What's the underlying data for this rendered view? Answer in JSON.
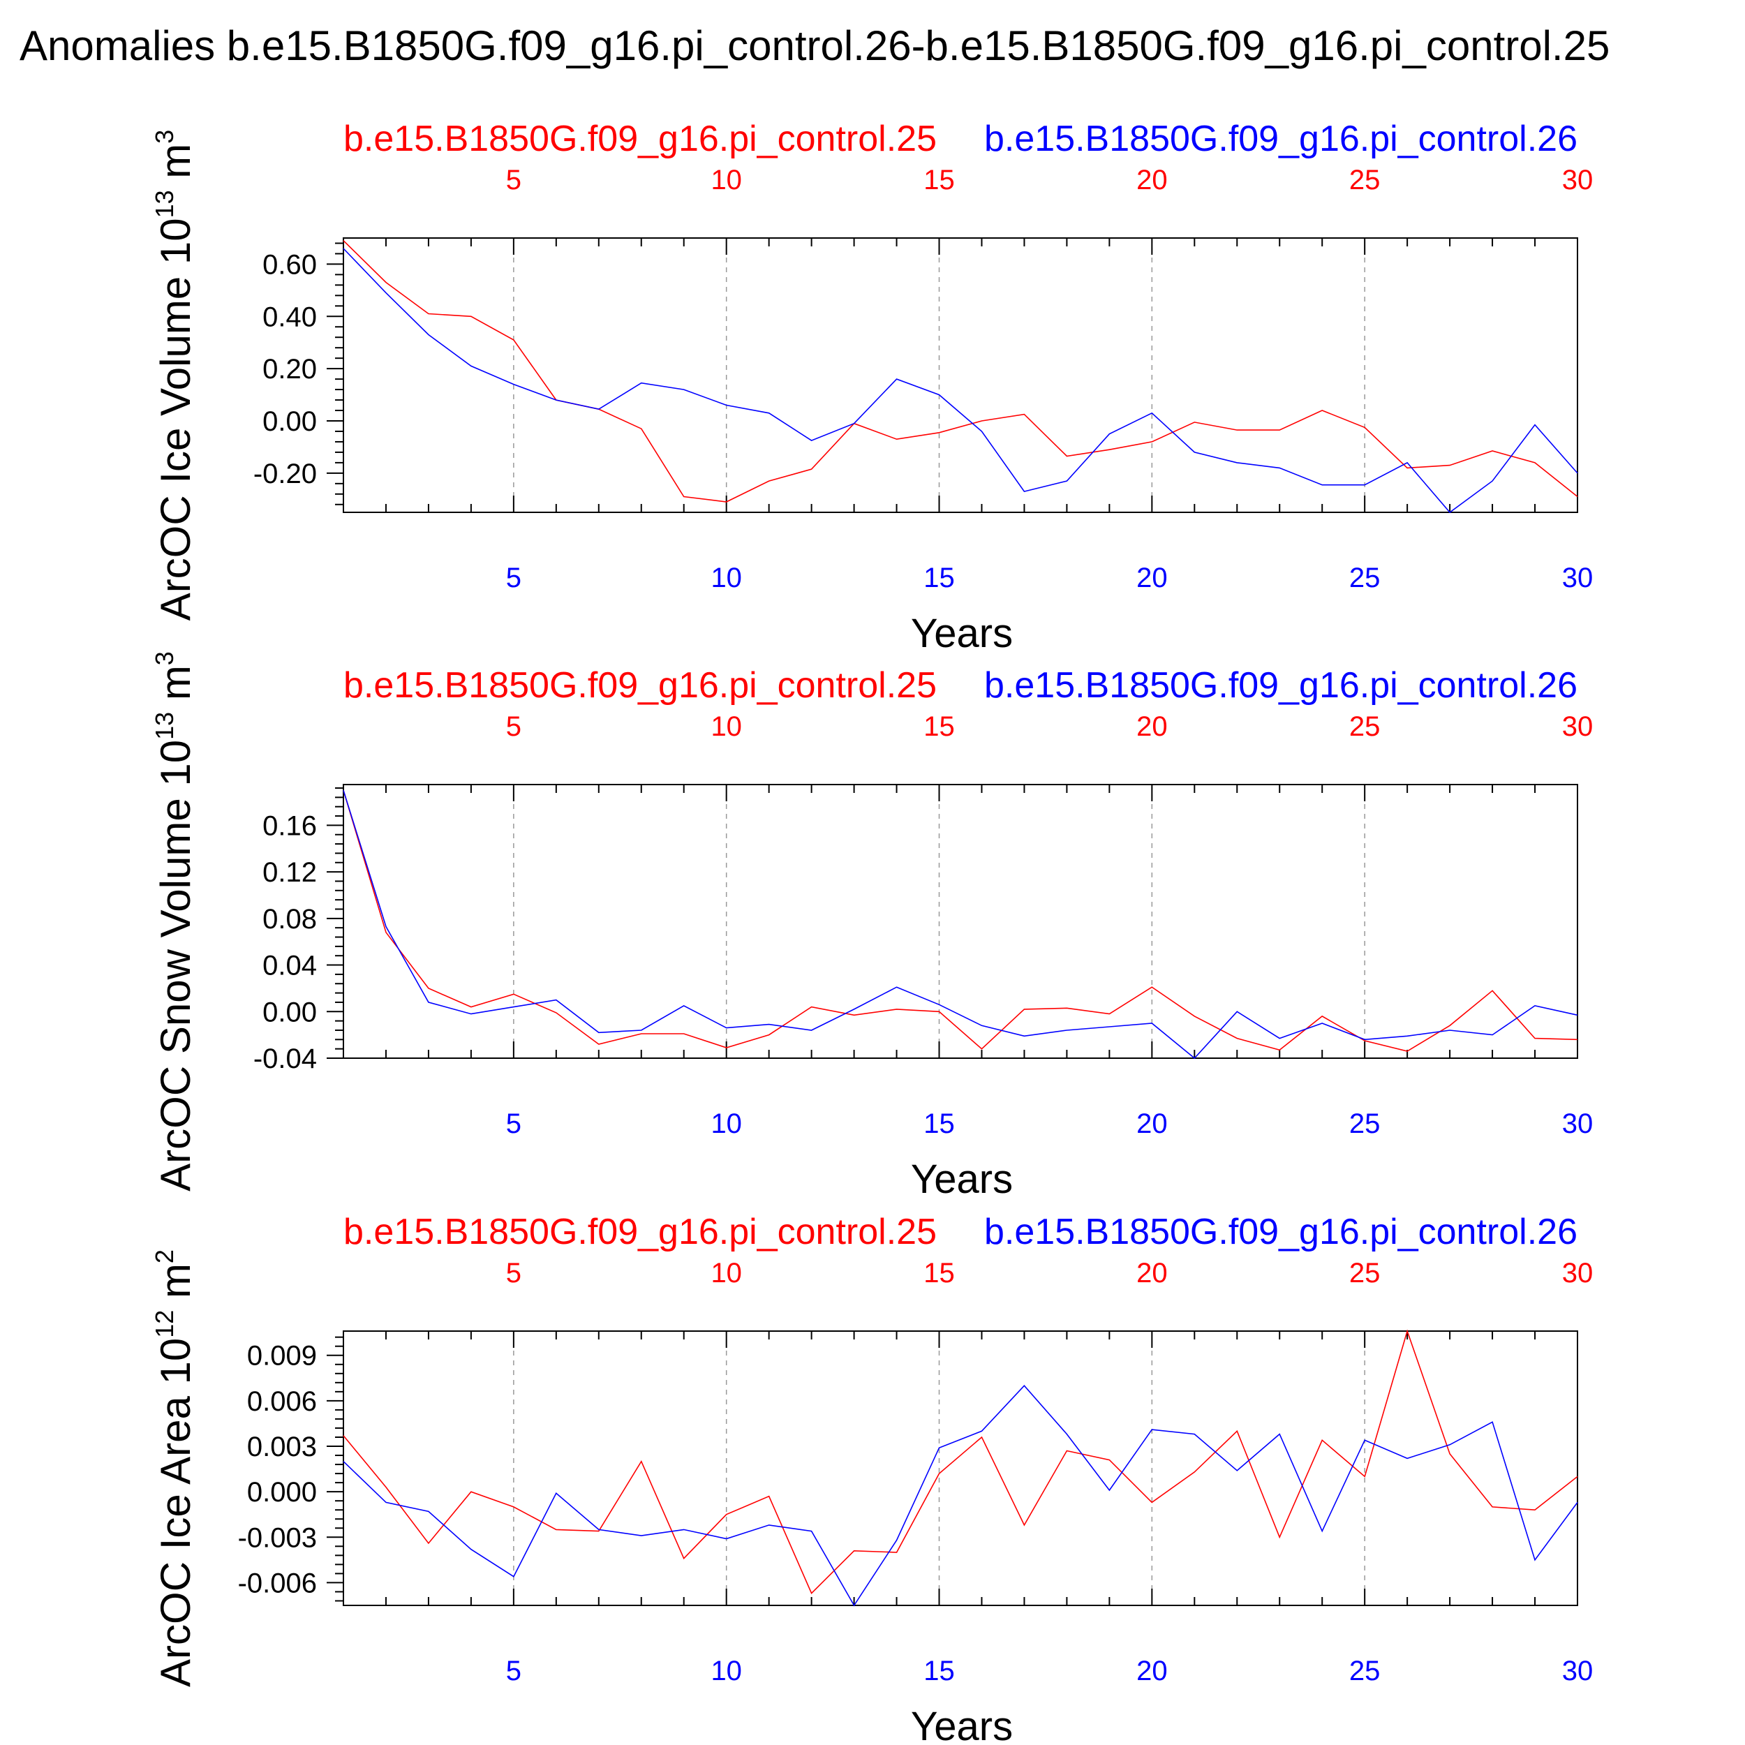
{
  "figure": {
    "title": "Anomalies b.e15.B1850G.f09_g16.pi_control.26-b.e15.B1850G.f09_g16.pi_control.25",
    "y_axis_label": "ArcOC Ice Volume 10^13 m^3"
  },
  "colors": {
    "run25": "#ff0000",
    "run26": "#0000ff",
    "axis": "#000000",
    "grid": "#999999"
  },
  "chart_data": [
    {
      "type": "line",
      "title": "",
      "xlabel": "Years",
      "ylabel": "ArcOC Ice Volume",
      "yunit": "10^13 m^3",
      "xlim": [
        1,
        30
      ],
      "ylim": [
        -0.35,
        0.7
      ],
      "yticks": [
        -0.2,
        0.0,
        0.2,
        0.4,
        0.6
      ],
      "ytick_labels": [
        "-0.20",
        "0.00",
        "0.20",
        "0.40",
        "0.60"
      ],
      "xticks": [
        5,
        10,
        15,
        20,
        25,
        30
      ],
      "xtick_labels": [
        "5",
        "10",
        "15",
        "20",
        "25",
        "30"
      ],
      "grid_x": true,
      "series": [
        {
          "name": "b.e15.B1850G.f09_g16.pi_control.25",
          "color": "#ff0000",
          "x": [
            1,
            2,
            3,
            4,
            5,
            6,
            7,
            8,
            9,
            10,
            11,
            12,
            13,
            14,
            15,
            16,
            17,
            18,
            19,
            20,
            21,
            22,
            23,
            24,
            25,
            26,
            27,
            28,
            29,
            30
          ],
          "values": [
            0.69,
            0.53,
            0.41,
            0.4,
            0.31,
            0.08,
            0.045,
            -0.03,
            -0.29,
            -0.31,
            -0.23,
            -0.185,
            -0.01,
            -0.07,
            -0.045,
            0.0,
            0.025,
            -0.135,
            -0.11,
            -0.08,
            -0.005,
            -0.035,
            -0.035,
            0.04,
            -0.025,
            -0.18,
            -0.17,
            -0.115,
            -0.16,
            -0.29
          ]
        },
        {
          "name": "b.e15.B1850G.f09_g16.pi_control.26",
          "color": "#0000ff",
          "x": [
            1,
            2,
            3,
            4,
            5,
            6,
            7,
            8,
            9,
            10,
            11,
            12,
            13,
            14,
            15,
            16,
            17,
            18,
            19,
            20,
            21,
            22,
            23,
            24,
            25,
            26,
            27,
            28,
            29,
            30
          ],
          "values": [
            0.66,
            0.49,
            0.33,
            0.21,
            0.14,
            0.08,
            0.045,
            0.145,
            0.12,
            0.06,
            0.03,
            -0.075,
            -0.01,
            0.16,
            0.1,
            -0.04,
            -0.27,
            -0.23,
            -0.05,
            0.03,
            -0.12,
            -0.16,
            -0.18,
            -0.245,
            -0.245,
            -0.16,
            -0.35,
            -0.23,
            -0.015,
            -0.2
          ]
        }
      ]
    },
    {
      "type": "line",
      "title": "",
      "xlabel": "Years",
      "ylabel": "ArcOC Snow Volume",
      "yunit": "10^13 m^3",
      "xlim": [
        1,
        30
      ],
      "ylim": [
        -0.04,
        0.195
      ],
      "yticks": [
        -0.04,
        0.0,
        0.04,
        0.08,
        0.12,
        0.16
      ],
      "ytick_labels": [
        "-0.04",
        "0.00",
        "0.04",
        "0.08",
        "0.12",
        "0.16"
      ],
      "xticks": [
        5,
        10,
        15,
        20,
        25,
        30
      ],
      "xtick_labels": [
        "5",
        "10",
        "15",
        "20",
        "25",
        "30"
      ],
      "grid_x": true,
      "series": [
        {
          "name": "b.e15.B1850G.f09_g16.pi_control.25",
          "color": "#ff0000",
          "x": [
            1,
            2,
            3,
            4,
            5,
            6,
            7,
            8,
            9,
            10,
            11,
            12,
            13,
            14,
            15,
            16,
            17,
            18,
            19,
            20,
            21,
            22,
            23,
            24,
            25,
            26,
            27,
            28,
            29,
            30
          ],
          "values": [
            0.19,
            0.068,
            0.02,
            0.004,
            0.015,
            -0.001,
            -0.028,
            -0.019,
            -0.019,
            -0.031,
            -0.02,
            0.004,
            -0.003,
            0.002,
            0.0,
            -0.032,
            0.002,
            0.003,
            -0.002,
            0.021,
            -0.004,
            -0.023,
            -0.033,
            -0.004,
            -0.025,
            -0.034,
            -0.012,
            0.018,
            -0.023,
            -0.024
          ]
        },
        {
          "name": "b.e15.B1850G.f09_g16.pi_control.26",
          "color": "#0000ff",
          "x": [
            1,
            2,
            3,
            4,
            5,
            6,
            7,
            8,
            9,
            10,
            11,
            12,
            13,
            14,
            15,
            16,
            17,
            18,
            19,
            20,
            21,
            22,
            23,
            24,
            25,
            26,
            27,
            28,
            29,
            30
          ],
          "values": [
            0.19,
            0.073,
            0.008,
            -0.002,
            0.004,
            0.01,
            -0.018,
            -0.016,
            0.005,
            -0.014,
            -0.011,
            -0.016,
            0.002,
            0.021,
            0.006,
            -0.012,
            -0.021,
            -0.016,
            -0.013,
            -0.01,
            -0.042,
            0.0,
            -0.023,
            -0.01,
            -0.024,
            -0.021,
            -0.016,
            -0.02,
            0.005,
            -0.003
          ]
        }
      ]
    },
    {
      "type": "line",
      "title": "",
      "xlabel": "Years",
      "ylabel": "ArcOC Ice Area",
      "yunit": "10^12 m^2",
      "xlim": [
        1,
        30
      ],
      "ylim": [
        -0.0075,
        0.0106
      ],
      "yticks": [
        -0.006,
        -0.003,
        0.0,
        0.003,
        0.006,
        0.009
      ],
      "ytick_labels": [
        "-0.006",
        "-0.003",
        "0.000",
        "0.003",
        "0.006",
        "0.009"
      ],
      "xticks": [
        5,
        10,
        15,
        20,
        25,
        30
      ],
      "xtick_labels": [
        "5",
        "10",
        "15",
        "20",
        "25",
        "30"
      ],
      "grid_x": true,
      "series": [
        {
          "name": "b.e15.B1850G.f09_g16.pi_control.25",
          "color": "#ff0000",
          "x": [
            1,
            2,
            3,
            4,
            5,
            6,
            7,
            8,
            9,
            10,
            11,
            12,
            13,
            14,
            15,
            16,
            17,
            18,
            19,
            20,
            21,
            22,
            23,
            24,
            25,
            26,
            27,
            28,
            29,
            30
          ],
          "values": [
            0.0037,
            0.0003,
            -0.0034,
            0.0,
            -0.001,
            -0.0025,
            -0.0026,
            0.002,
            -0.0044,
            -0.0015,
            -0.0003,
            -0.0067,
            -0.0039,
            -0.004,
            0.0012,
            0.0036,
            -0.0022,
            0.0027,
            0.0021,
            -0.0007,
            0.0013,
            0.004,
            -0.003,
            0.0034,
            0.001,
            0.0106,
            0.0025,
            -0.001,
            -0.0012,
            0.001
          ]
        },
        {
          "name": "b.e15.B1850G.f09_g16.pi_control.26",
          "color": "#0000ff",
          "x": [
            1,
            2,
            3,
            4,
            5,
            6,
            7,
            8,
            9,
            10,
            11,
            12,
            13,
            14,
            15,
            16,
            17,
            18,
            19,
            20,
            21,
            22,
            23,
            24,
            25,
            26,
            27,
            28,
            29,
            30
          ],
          "values": [
            0.002,
            -0.0007,
            -0.0013,
            -0.0038,
            -0.0056,
            -0.0001,
            -0.0025,
            -0.0029,
            -0.0025,
            -0.0031,
            -0.0022,
            -0.0026,
            -0.0075,
            -0.0032,
            0.0029,
            0.004,
            0.007,
            0.0038,
            0.0001,
            0.0041,
            0.0038,
            0.0014,
            0.0038,
            -0.0026,
            0.0034,
            0.0022,
            0.0031,
            0.0046,
            -0.0045,
            -0.0007
          ]
        }
      ]
    }
  ]
}
